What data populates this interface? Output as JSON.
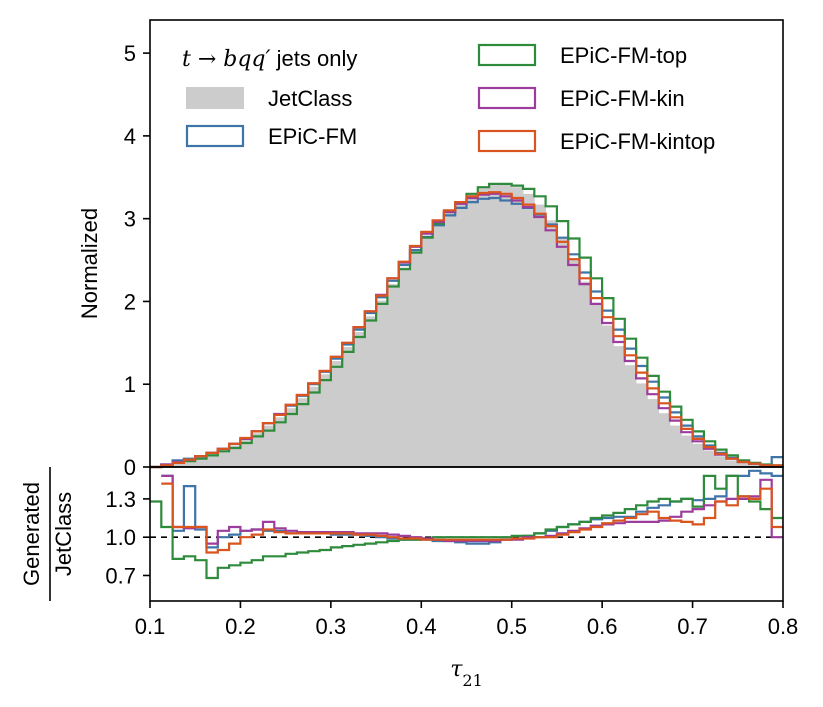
{
  "chart_data": [
    {
      "panel": "main",
      "type": "histogram-step",
      "annotation": "t → bqq′ jets only",
      "ylabel": "Normalized",
      "xlim": [
        0.1,
        0.8
      ],
      "ylim": [
        0,
        5.4
      ],
      "yticks": [
        0,
        1,
        2,
        3,
        4,
        5
      ],
      "ytick_labels": [
        "0",
        "1",
        "2",
        "3",
        "4",
        "5"
      ],
      "legend_position": "top",
      "bins": [
        0.1,
        0.8,
        56
      ],
      "series": [
        {
          "name": "JetClass",
          "style": "filled",
          "color": "#cccccc",
          "values": [
            0.0,
            0.02,
            0.05,
            0.08,
            0.12,
            0.16,
            0.21,
            0.26,
            0.33,
            0.41,
            0.5,
            0.6,
            0.71,
            0.83,
            0.97,
            1.12,
            1.28,
            1.45,
            1.63,
            1.82,
            2.01,
            2.21,
            2.41,
            2.6,
            2.78,
            2.94,
            3.08,
            3.2,
            3.3,
            3.37,
            3.41,
            3.42,
            3.38,
            3.3,
            3.17,
            2.98,
            2.76,
            2.5,
            2.24,
            1.97,
            1.71,
            1.46,
            1.23,
            1.01,
            0.82,
            0.65,
            0.5,
            0.38,
            0.28,
            0.2,
            0.13,
            0.08,
            0.05,
            0.03,
            0.02,
            0.01
          ]
        },
        {
          "name": "EPiC-FM",
          "style": "step",
          "color": "#3f74a8",
          "values": [
            0.0,
            0.03,
            0.08,
            0.1,
            0.13,
            0.17,
            0.22,
            0.28,
            0.34,
            0.43,
            0.53,
            0.63,
            0.74,
            0.86,
            1.0,
            1.15,
            1.31,
            1.48,
            1.66,
            1.86,
            2.05,
            2.25,
            2.44,
            2.62,
            2.78,
            2.92,
            3.04,
            3.13,
            3.2,
            3.24,
            3.25,
            3.22,
            3.18,
            3.13,
            3.05,
            2.93,
            2.77,
            2.57,
            2.35,
            2.12,
            1.89,
            1.66,
            1.43,
            1.22,
            1.03,
            0.84,
            0.66,
            0.5,
            0.37,
            0.26,
            0.17,
            0.11,
            0.07,
            0.04,
            0.02,
            0.12
          ]
        },
        {
          "name": "EPiC-FM-top",
          "style": "step",
          "color": "#2e8b3b",
          "values": [
            0.0,
            0.02,
            0.05,
            0.07,
            0.1,
            0.14,
            0.19,
            0.23,
            0.29,
            0.37,
            0.44,
            0.54,
            0.64,
            0.76,
            0.9,
            1.05,
            1.21,
            1.39,
            1.57,
            1.77,
            1.97,
            2.18,
            2.39,
            2.59,
            2.77,
            2.94,
            3.08,
            3.2,
            3.3,
            3.38,
            3.42,
            3.42,
            3.4,
            3.36,
            3.27,
            3.15,
            2.97,
            2.76,
            2.53,
            2.28,
            2.04,
            1.79,
            1.55,
            1.32,
            1.1,
            0.91,
            0.73,
            0.57,
            0.43,
            0.31,
            0.21,
            0.14,
            0.08,
            0.05,
            0.03,
            0.02
          ]
        },
        {
          "name": "EPiC-FM-kin",
          "style": "step",
          "color": "#9c3c9c",
          "values": [
            0.0,
            0.03,
            0.06,
            0.09,
            0.13,
            0.17,
            0.22,
            0.28,
            0.34,
            0.43,
            0.53,
            0.64,
            0.75,
            0.87,
            1.01,
            1.16,
            1.33,
            1.5,
            1.69,
            1.88,
            2.08,
            2.28,
            2.47,
            2.66,
            2.82,
            2.96,
            3.08,
            3.18,
            3.25,
            3.29,
            3.3,
            3.27,
            3.22,
            3.14,
            3.02,
            2.86,
            2.66,
            2.44,
            2.21,
            1.97,
            1.74,
            1.51,
            1.28,
            1.07,
            0.88,
            0.71,
            0.56,
            0.42,
            0.31,
            0.22,
            0.15,
            0.1,
            0.06,
            0.04,
            0.02,
            0.01
          ]
        },
        {
          "name": "EPiC-FM-kintop",
          "style": "step",
          "color": "#d9541f",
          "values": [
            0.0,
            0.02,
            0.05,
            0.09,
            0.13,
            0.17,
            0.22,
            0.28,
            0.35,
            0.43,
            0.53,
            0.63,
            0.75,
            0.87,
            1.01,
            1.16,
            1.33,
            1.5,
            1.69,
            1.88,
            2.07,
            2.28,
            2.48,
            2.67,
            2.84,
            2.98,
            3.1,
            3.2,
            3.27,
            3.31,
            3.32,
            3.3,
            3.25,
            3.17,
            3.06,
            2.91,
            2.72,
            2.51,
            2.28,
            2.04,
            1.81,
            1.58,
            1.35,
            1.14,
            0.95,
            0.77,
            0.6,
            0.46,
            0.34,
            0.24,
            0.16,
            0.1,
            0.06,
            0.04,
            0.02,
            0.02
          ]
        }
      ]
    },
    {
      "panel": "ratio",
      "type": "histogram-step",
      "ylabel_top": "Generated",
      "ylabel_bottom": "JetClass",
      "xlabel": "τ21",
      "xlim": [
        0.1,
        0.8
      ],
      "ylim": [
        0.5,
        1.55
      ],
      "yticks": [
        0.7,
        1.0,
        1.3
      ],
      "ytick_labels": [
        "0.7",
        "1.0",
        "1.3"
      ],
      "xticks": [
        0.1,
        0.2,
        0.3,
        0.4,
        0.5,
        0.6,
        0.7,
        0.8
      ],
      "xtick_labels": [
        "0.1",
        "0.2",
        "0.3",
        "0.4",
        "0.5",
        "0.6",
        "0.7",
        "0.8"
      ],
      "reference_line": 1.0,
      "series": [
        {
          "name": "EPiC-FM",
          "color": "#3f74a8",
          "values": [
            null,
            1.48,
            1.05,
            1.4,
            1.06,
            0.92,
            1.0,
            1.02,
            1.05,
            1.06,
            1.05,
            1.05,
            1.03,
            1.03,
            1.03,
            1.03,
            1.02,
            1.02,
            1.02,
            1.01,
            1.0,
            0.99,
            0.98,
            0.98,
            0.98,
            0.97,
            0.97,
            0.96,
            0.95,
            0.95,
            0.96,
            0.98,
            0.99,
            1.01,
            1.03,
            1.05,
            1.08,
            1.1,
            1.12,
            1.14,
            1.15,
            1.16,
            1.16,
            1.2,
            1.23,
            1.25,
            1.28,
            1.3,
            1.29,
            1.3,
            1.32,
            1.48,
            1.48,
            1.52,
            1.5,
            1.48
          ]
        },
        {
          "name": "EPiC-FM-top",
          "color": "#2e8b3b",
          "values": [
            1.28,
            1.08,
            0.83,
            0.85,
            0.82,
            0.68,
            0.76,
            0.78,
            0.8,
            0.82,
            0.85,
            0.85,
            0.87,
            0.88,
            0.89,
            0.9,
            0.92,
            0.93,
            0.94,
            0.95,
            0.96,
            0.97,
            0.98,
            0.98,
            0.99,
            1.0,
            1.0,
            1.0,
            1.0,
            1.0,
            1.0,
            1.0,
            1.01,
            1.01,
            1.03,
            1.06,
            1.08,
            1.1,
            1.12,
            1.15,
            1.17,
            1.19,
            1.22,
            1.25,
            1.28,
            1.3,
            1.28,
            1.3,
            1.24,
            1.48,
            1.38,
            1.48,
            1.32,
            1.28,
            1.22,
            1.15
          ]
        },
        {
          "name": "EPiC-FM-kin",
          "color": "#9c3c9c",
          "values": [
            null,
            1.48,
            1.08,
            1.07,
            1.08,
            0.95,
            1.05,
            1.08,
            1.05,
            1.06,
            1.12,
            1.07,
            1.05,
            1.04,
            1.04,
            1.04,
            1.04,
            1.04,
            1.03,
            1.03,
            1.03,
            1.02,
            1.01,
            1.0,
            0.99,
            0.98,
            0.97,
            0.97,
            0.97,
            0.97,
            0.97,
            0.98,
            0.98,
            1.0,
            1.0,
            1.01,
            1.03,
            1.05,
            1.07,
            1.09,
            1.1,
            1.11,
            1.12,
            1.12,
            1.12,
            1.13,
            1.16,
            1.2,
            1.22,
            1.25,
            1.28,
            1.3,
            1.3,
            1.32,
            1.45,
            1.0
          ]
        },
        {
          "name": "EPiC-FM-kintop",
          "color": "#d9541f",
          "values": [
            null,
            1.42,
            1.08,
            1.08,
            1.08,
            0.88,
            0.9,
            0.95,
            1.0,
            1.02,
            1.06,
            1.04,
            1.03,
            1.03,
            1.03,
            1.03,
            1.03,
            1.03,
            1.02,
            1.02,
            1.01,
            1.0,
            0.99,
            0.99,
            0.98,
            0.98,
            0.98,
            0.98,
            0.98,
            0.98,
            0.98,
            0.98,
            0.99,
            0.99,
            1.0,
            1.0,
            1.02,
            1.04,
            1.06,
            1.08,
            1.11,
            1.13,
            1.15,
            1.18,
            1.2,
            1.15,
            1.13,
            1.12,
            1.1,
            1.15,
            1.28,
            1.25,
            1.32,
            1.3,
            1.38,
            1.08
          ]
        }
      ]
    }
  ],
  "legend": {
    "left": [
      {
        "series": "JetClass",
        "kind": "filled"
      },
      {
        "series": "EPiC-FM",
        "kind": "step"
      }
    ],
    "right": [
      {
        "series": "EPiC-FM-top",
        "kind": "step"
      },
      {
        "series": "EPiC-FM-kin",
        "kind": "step"
      },
      {
        "series": "EPiC-FM-kintop",
        "kind": "step"
      }
    ]
  }
}
